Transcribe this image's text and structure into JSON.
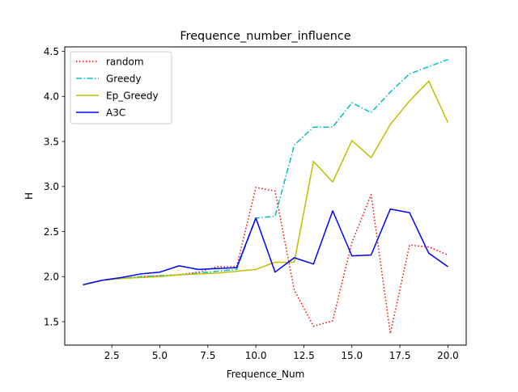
{
  "chart_data": {
    "type": "line",
    "title": "Frequence_number_influence",
    "xlabel": "Frequence_Num",
    "ylabel": "H",
    "xlim": [
      0.05,
      20.95
    ],
    "ylim": [
      1.24,
      4.55
    ],
    "x": [
      1,
      2,
      3,
      4,
      5,
      6,
      7,
      8,
      9,
      10,
      11,
      12,
      13,
      14,
      15,
      16,
      17,
      18,
      19,
      20
    ],
    "xticks": [
      2.5,
      5.0,
      7.5,
      10.0,
      12.5,
      15.0,
      17.5,
      20.0
    ],
    "xtick_labels": [
      "2.5",
      "5.0",
      "7.5",
      "10.0",
      "12.5",
      "15.0",
      "17.5",
      "20.0"
    ],
    "yticks": [
      1.5,
      2.0,
      2.5,
      3.0,
      3.5,
      4.0,
      4.5
    ],
    "ytick_labels": [
      "1.5",
      "2.0",
      "2.5",
      "3.0",
      "3.5",
      "4.0",
      "4.5"
    ],
    "grid": false,
    "legend_position": "upper-left",
    "series": [
      {
        "name": "random",
        "color": "#ff0000",
        "style": "dotted",
        "values": [
          1.91,
          1.96,
          1.98,
          2.0,
          2.01,
          2.02,
          2.05,
          2.11,
          2.11,
          2.99,
          2.95,
          1.85,
          1.45,
          1.51,
          2.38,
          2.91,
          1.37,
          2.35,
          2.33,
          2.24
        ]
      },
      {
        "name": "Greedy",
        "color": "#00bfbf",
        "style": "dashdot",
        "values": [
          1.91,
          1.96,
          1.98,
          2.0,
          2.01,
          2.02,
          2.04,
          2.06,
          2.08,
          2.65,
          2.67,
          3.46,
          3.66,
          3.66,
          3.93,
          3.82,
          4.05,
          4.25,
          4.33,
          4.41
        ]
      },
      {
        "name": "Ep_Greedy",
        "color": "#bfbf00",
        "style": "solid",
        "values": [
          1.91,
          1.96,
          1.98,
          1.99,
          2.0,
          2.02,
          2.03,
          2.04,
          2.06,
          2.08,
          2.16,
          2.16,
          3.28,
          3.05,
          3.51,
          3.32,
          3.69,
          3.95,
          4.17,
          3.71
        ]
      },
      {
        "name": "A3C",
        "color": "#0000ff",
        "style": "solid",
        "values": [
          1.91,
          1.96,
          1.99,
          2.03,
          2.05,
          2.12,
          2.08,
          2.09,
          2.1,
          2.65,
          2.05,
          2.21,
          2.14,
          2.73,
          2.23,
          2.24,
          2.75,
          2.71,
          2.26,
          2.11
        ]
      }
    ]
  }
}
